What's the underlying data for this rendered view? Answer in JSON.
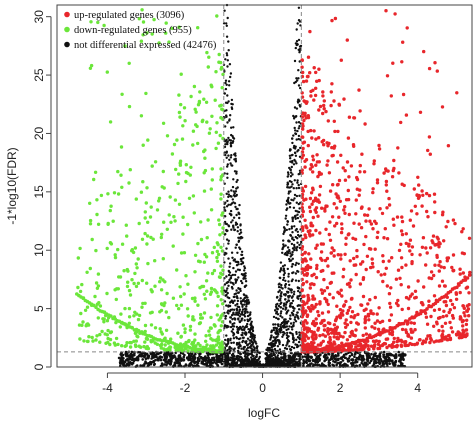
{
  "chart_data": {
    "type": "scatter",
    "title": "",
    "xlabel": "logFC",
    "ylabel": "-1*log10(FDR)",
    "xlim": [
      -5.3,
      5.4
    ],
    "ylim": [
      0,
      31
    ],
    "x_ticks": [
      -4,
      -2,
      0,
      2,
      4
    ],
    "y_ticks": [
      0,
      5,
      10,
      15,
      20,
      25,
      30
    ],
    "thresholds": {
      "logFC": [
        -1,
        1
      ],
      "neg_log10_fdr": 1.3
    },
    "grid": false,
    "legend_position": "top-left",
    "series": [
      {
        "name": "up-regulated genes (3096)",
        "color": "#e8262b",
        "count": 3096
      },
      {
        "name": "down-regulated genes (955)",
        "color": "#6be63a",
        "count": 955
      },
      {
        "name": "not differential expressed (42476)",
        "color": "#111111",
        "count": 42476
      }
    ]
  }
}
